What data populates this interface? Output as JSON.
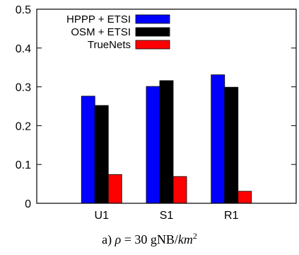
{
  "chart_data": {
    "type": "bar",
    "categories": [
      "U1",
      "S1",
      "R1"
    ],
    "series": [
      {
        "name": "HPPP + ETSI",
        "color": "#0000ff",
        "values": [
          0.276,
          0.301,
          0.331
        ]
      },
      {
        "name": "OSM + ETSI",
        "color": "#000000",
        "values": [
          0.252,
          0.316,
          0.299
        ]
      },
      {
        "name": "TrueNets",
        "color": "#ff0000",
        "values": [
          0.074,
          0.069,
          0.031
        ]
      }
    ],
    "ylim": [
      0,
      0.5
    ],
    "yticks": [
      "0",
      "0.1",
      "0.2",
      "0.3",
      "0.4",
      "0.5"
    ],
    "legend_position": "top-left",
    "grid": false
  },
  "caption": {
    "prefix": "a) ",
    "symbol": "ρ",
    "middle": " = 30 gNB/",
    "unit": "km",
    "exponent": "2"
  }
}
